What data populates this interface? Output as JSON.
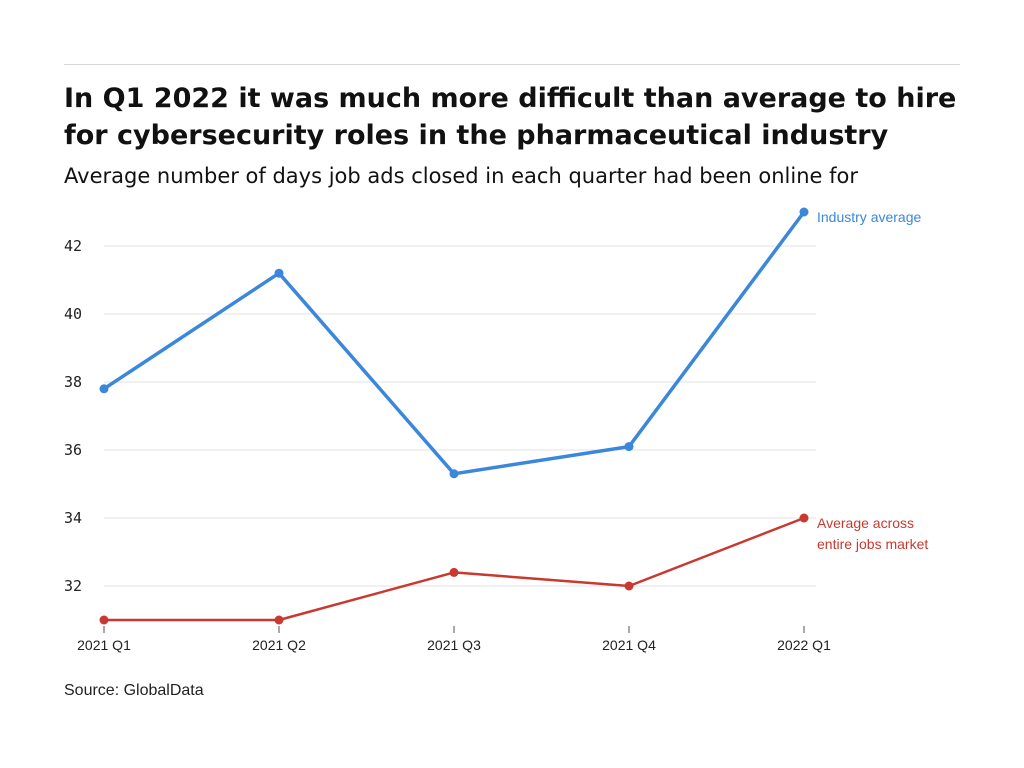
{
  "chart_data": {
    "type": "line",
    "title": "In Q1 2022 it was much more difficult than average to hire for cybersecurity roles in the pharmaceutical industry",
    "subtitle": "Average number of days job ads closed in each quarter had been online for",
    "source": "Source: GlobalData",
    "categories": [
      "2021 Q1",
      "2021 Q2",
      "2021 Q3",
      "2021 Q4",
      "2022 Q1"
    ],
    "yticks": [
      32,
      34,
      36,
      38,
      40,
      42
    ],
    "ylim": [
      31,
      43
    ],
    "grid": true,
    "series": [
      {
        "name": "Industry average",
        "values": [
          37.8,
          41.2,
          35.3,
          36.1,
          43.0
        ],
        "color": "#3b87db"
      },
      {
        "name_lines": [
          "Average across",
          "entire jobs market"
        ],
        "values": [
          31.0,
          31.0,
          32.4,
          32.0,
          34.0
        ],
        "color": "#c9392f"
      }
    ]
  }
}
